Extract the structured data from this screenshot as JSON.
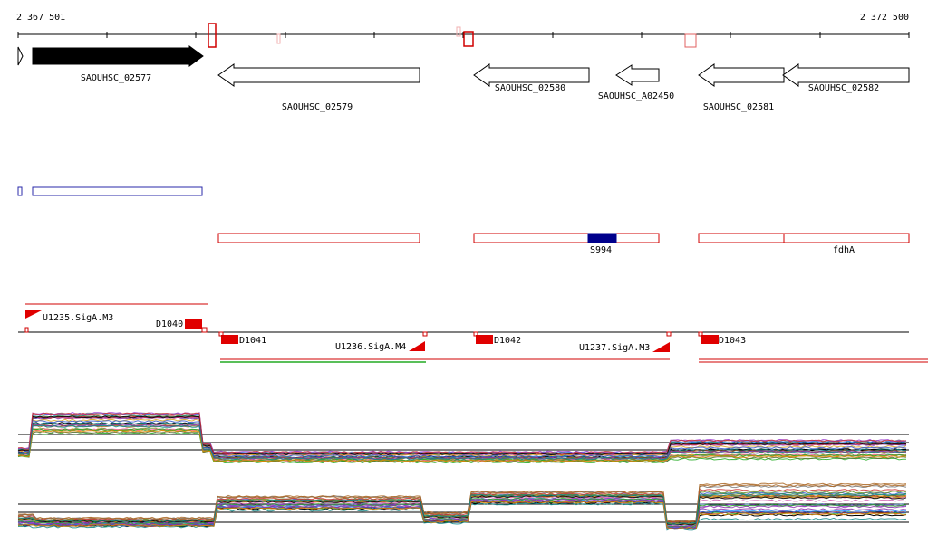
{
  "coords": {
    "start_label": "2 367 501",
    "end_label": "2 372 500"
  },
  "genes": [
    {
      "id": "SAOUHSC_02577"
    },
    {
      "id": "SAOUHSC_02579"
    },
    {
      "id": "SAOUHSC_02580"
    },
    {
      "id": "SAOUHSC_A02450"
    },
    {
      "id": "SAOUHSC_02581"
    },
    {
      "id": "SAOUHSC_02582"
    }
  ],
  "features": [
    {
      "label": "S994"
    },
    {
      "label": "fdhA"
    }
  ],
  "transcripts": [
    {
      "label": "U1235.SigA.M3"
    },
    {
      "label": "D1040"
    },
    {
      "label": "D1041"
    },
    {
      "label": "U1236.SigA.M4"
    },
    {
      "label": "D1042"
    },
    {
      "label": "U1237.SigA.M3"
    },
    {
      "label": "D1043"
    }
  ],
  "colors": {
    "gene_fill_forward": "#000000",
    "gene_outline": "#000000",
    "blue_outline": "#2a2aa8",
    "red": "#e00000",
    "navy": "#00008c",
    "green": "#22aa22"
  }
}
